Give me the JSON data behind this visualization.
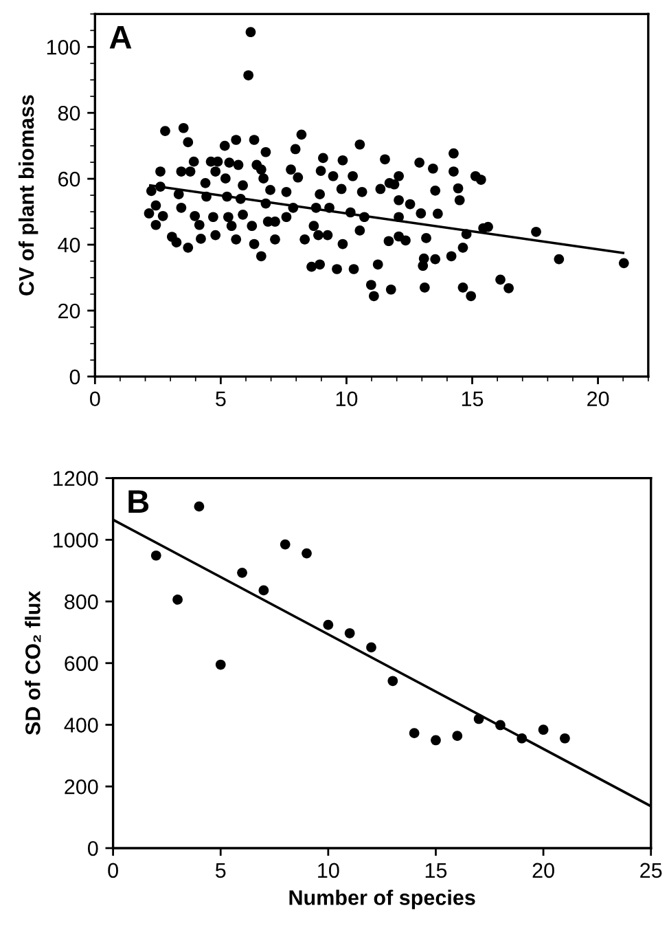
{
  "chart_data": [
    {
      "type": "scatter",
      "ylabel": "CV of plant biomass",
      "annotations": [
        "A"
      ],
      "xlim": [
        0,
        22
      ],
      "ylim": [
        0,
        110
      ],
      "xticks": [
        0,
        5,
        10,
        15,
        20
      ],
      "yticks": [
        0,
        20,
        40,
        60,
        80,
        100
      ],
      "grid": false,
      "series": [
        {
          "marker": "circle",
          "color": "#000000",
          "x": [
            6.19,
            6.1,
            2.79,
            3.52,
            3.7,
            2.6,
            3.43,
            3.79,
            3.93,
            2.24,
            2.6,
            2.15,
            2.42,
            2.7,
            2.42,
            3.06,
            3.24,
            3.7,
            3.33,
            3.43,
            3.97,
            4.15,
            4.21,
            4.39,
            4.43,
            4.61,
            4.79,
            4.88,
            4.7,
            4.79,
            5.16,
            5.34,
            5.19,
            5.25,
            5.3,
            5.43,
            5.61,
            5.7,
            5.88,
            5.79,
            5.88,
            5.61,
            6.33,
            6.24,
            6.33,
            6.43,
            6.61,
            6.61,
            6.79,
            6.7,
            6.79,
            6.88,
            6.97,
            7.16,
            7.16,
            7.61,
            7.79,
            7.97,
            8.21,
            8.07,
            7.61,
            7.88,
            8.34,
            8.61,
            8.94,
            9.07,
            8.98,
            8.94,
            8.79,
            8.7,
            8.88,
            9.47,
            9.32,
            9.25,
            9.62,
            9.85,
            9.8,
            9.85,
            10.25,
            10.29,
            10.53,
            10.16,
            10.62,
            10.71,
            10.53,
            10.98,
            11.09,
            11.25,
            11.35,
            11.53,
            12.08,
            11.9,
            11.71,
            12.08,
            12.53,
            12.08,
            11.68,
            12.08,
            12.35,
            11.77,
            12.9,
            13.44,
            13.53,
            12.96,
            13.63,
            13.17,
            13.08,
            13.53,
            13.04,
            13.11,
            14.26,
            14.26,
            14.44,
            14.5,
            14.17,
            14.63,
            14.77,
            14.63,
            14.95,
            15.13,
            15.35,
            15.44,
            15.63,
            16.12,
            16.45,
            17.54,
            18.45,
            21.03
          ],
          "values": [
            104.5,
            91.4,
            74.5,
            75.4,
            71.1,
            62.2,
            62.2,
            62.2,
            65.2,
            56.3,
            57.6,
            49.5,
            51.9,
            48.7,
            46.0,
            42.4,
            40.7,
            39.1,
            55.3,
            51.2,
            48.7,
            46.0,
            41.8,
            58.7,
            54.6,
            65.2,
            62.2,
            65.2,
            48.4,
            42.9,
            70.0,
            64.9,
            60.1,
            54.6,
            48.4,
            45.7,
            71.8,
            64.2,
            58.0,
            53.9,
            49.1,
            41.6,
            71.8,
            45.7,
            40.2,
            64.2,
            62.8,
            36.5,
            68.1,
            60.1,
            52.5,
            47.0,
            56.6,
            41.6,
            47.0,
            56.0,
            62.8,
            69.0,
            73.4,
            60.4,
            48.4,
            51.2,
            41.6,
            33.3,
            34.0,
            66.3,
            62.4,
            55.3,
            51.2,
            45.7,
            42.9,
            60.8,
            51.2,
            42.9,
            32.6,
            65.6,
            56.9,
            40.2,
            60.8,
            32.6,
            70.4,
            49.8,
            56.0,
            48.4,
            44.3,
            27.8,
            24.4,
            34.0,
            56.9,
            65.9,
            60.8,
            58.3,
            58.7,
            53.5,
            52.3,
            48.4,
            41.1,
            42.5,
            41.3,
            26.4,
            64.9,
            63.1,
            56.4,
            49.5,
            49.4,
            42.0,
            35.8,
            35.6,
            33.6,
            27.0,
            67.7,
            62.2,
            57.1,
            53.5,
            36.5,
            39.1,
            43.2,
            27.0,
            24.4,
            60.8,
            59.7,
            45.0,
            45.4,
            29.4,
            26.8,
            43.9,
            35.6,
            34.4
          ]
        },
        {
          "type": "line",
          "marker": "none",
          "color": "#000000",
          "x": [
            2.2,
            21
          ],
          "values": [
            58,
            37.5
          ]
        }
      ]
    },
    {
      "type": "scatter",
      "xlabel": "Number of species",
      "ylabel": "SD of CO₂ flux",
      "annotations": [
        "B"
      ],
      "xlim": [
        0,
        25
      ],
      "ylim": [
        0,
        1200
      ],
      "xticks": [
        0,
        5,
        10,
        15,
        20,
        25
      ],
      "yticks": [
        0,
        200,
        400,
        600,
        800,
        1000,
        1200
      ],
      "grid": false,
      "series": [
        {
          "marker": "circle",
          "color": "#000000",
          "x": [
            2,
            3,
            4,
            5,
            6,
            7,
            8,
            9,
            10,
            11,
            12,
            13,
            14,
            15,
            16,
            17,
            18,
            19,
            20,
            21
          ],
          "values": [
            949,
            806,
            1108,
            595,
            893,
            836,
            985,
            956,
            724,
            697,
            651,
            542,
            373,
            350,
            364,
            419,
            399,
            356,
            384,
            356
          ]
        },
        {
          "type": "line",
          "marker": "none",
          "color": "#000000",
          "x": [
            0,
            25
          ],
          "values": [
            1065,
            136
          ]
        }
      ]
    }
  ]
}
